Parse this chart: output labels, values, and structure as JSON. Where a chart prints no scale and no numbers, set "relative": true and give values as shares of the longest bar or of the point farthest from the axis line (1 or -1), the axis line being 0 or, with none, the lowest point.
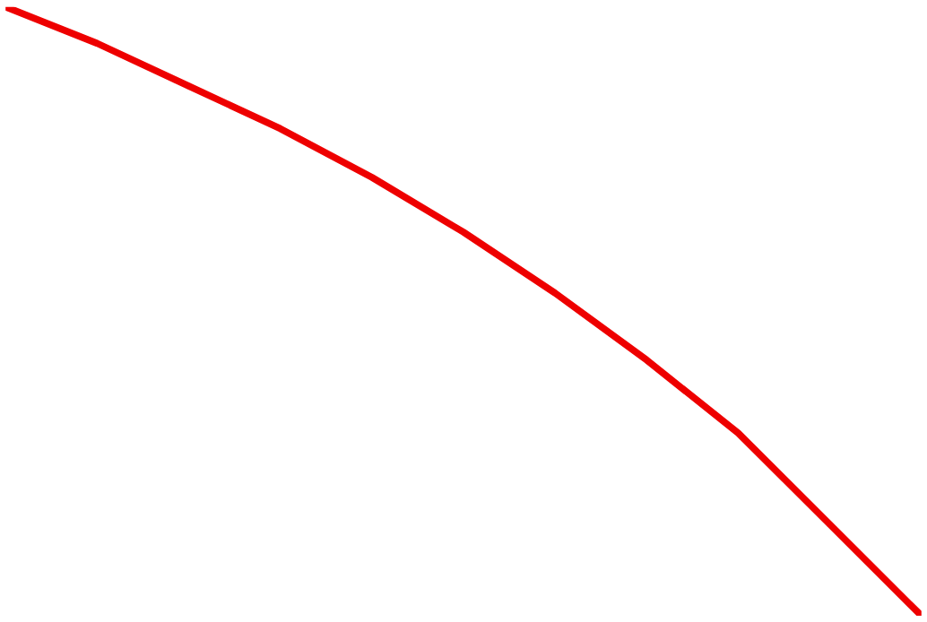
{
  "chart_data": {
    "type": "line",
    "relative": true,
    "categories": [
      null,
      null,
      null,
      null,
      null,
      null,
      null,
      null,
      null,
      null,
      null
    ],
    "series": [
      {
        "color": "#ee0000",
        "values": [
          1.0,
          0.94,
          0.87,
          0.8,
          0.72,
          0.63,
          0.53,
          0.42,
          0.3,
          0.15,
          0.0
        ]
      }
    ]
  }
}
